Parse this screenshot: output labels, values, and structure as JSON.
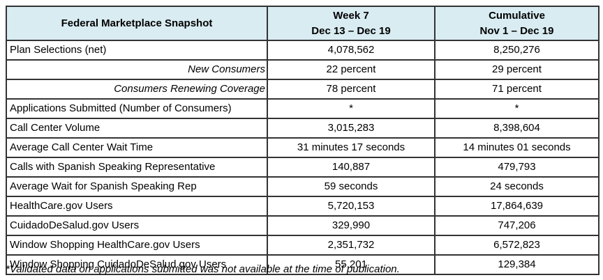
{
  "colors": {
    "header_background": "#d9ecf2",
    "border": "#333333",
    "text": "#000000"
  },
  "table": {
    "title": "Federal Marketplace Snapshot",
    "columns": {
      "week": {
        "line1": "Week 7",
        "line2": "Dec 13 – Dec 19"
      },
      "cumulative": {
        "line1": "Cumulative",
        "line2": "Nov 1 – Dec 19"
      }
    },
    "rows": [
      {
        "label": "Plan Selections (net)",
        "week": "4,078,562",
        "cumulative": "8,250,276",
        "sub": false
      },
      {
        "label": "New Consumers",
        "week": "22 percent",
        "cumulative": "29 percent",
        "sub": true
      },
      {
        "label": "Consumers Renewing Coverage",
        "week": "78 percent",
        "cumulative": "71 percent",
        "sub": true
      },
      {
        "label": "Applications Submitted (Number of Consumers)",
        "week": "*",
        "cumulative": "*",
        "sub": false
      },
      {
        "label": "Call Center Volume",
        "week": "3,015,283",
        "cumulative": "8,398,604",
        "sub": false
      },
      {
        "label": "Average Call Center Wait Time",
        "week": "31 minutes 17 seconds",
        "cumulative": "14 minutes 01 seconds",
        "sub": false
      },
      {
        "label": "Calls with Spanish Speaking Representative",
        "week": "140,887",
        "cumulative": "479,793",
        "sub": false
      },
      {
        "label": "Average Wait for Spanish Speaking Rep",
        "week": "59 seconds",
        "cumulative": "24 seconds",
        "sub": false
      },
      {
        "label": "HealthCare.gov Users",
        "week": "5,720,153",
        "cumulative": "17,864,639",
        "sub": false
      },
      {
        "label": "CuidadoDeSalud.gov Users",
        "week": "329,990",
        "cumulative": "747,206",
        "sub": false
      },
      {
        "label": "Window Shopping HealthCare.gov Users",
        "week": "2,351,732",
        "cumulative": "6,572,823",
        "sub": false
      },
      {
        "label": "Window Shopping CuidadoDeSalud.gov Users",
        "week": "55,201",
        "cumulative": "129,384",
        "sub": false
      }
    ]
  },
  "footnote": "*Validated data on applications submitted was not available at the time of publication."
}
